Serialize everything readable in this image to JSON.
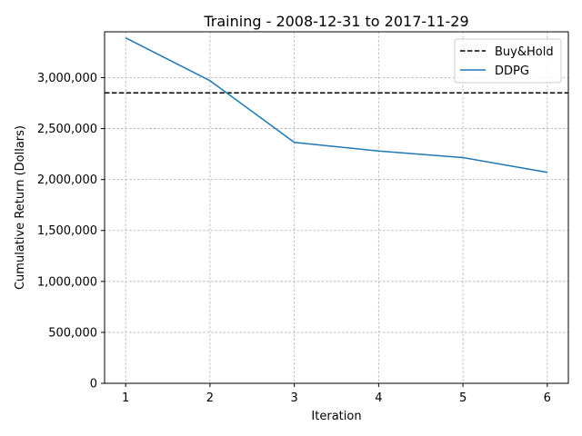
{
  "chart_data": {
    "type": "line",
    "title": "Training - 2008-12-31 to 2017-11-29",
    "xlabel": "Iteration",
    "ylabel": "Cumulative Return (Dollars)",
    "x": [
      1,
      2,
      3,
      4,
      5,
      6
    ],
    "xlim": [
      0.75,
      6.25
    ],
    "ylim": [
      0,
      3450000
    ],
    "x_ticks": [
      1,
      2,
      3,
      4,
      5,
      6
    ],
    "x_tick_labels": [
      "1",
      "2",
      "3",
      "4",
      "5",
      "6"
    ],
    "y_ticks": [
      0,
      500000,
      1000000,
      1500000,
      2000000,
      2500000,
      3000000
    ],
    "y_tick_labels": [
      "0",
      "500,000",
      "1,000,000",
      "1,500,000",
      "2,000,000",
      "2,500,000",
      "3,000,000"
    ],
    "grid": true,
    "legend_position": "top-right",
    "series": [
      {
        "name": "Buy&Hold",
        "kind": "hline",
        "value": 2850000,
        "color": "#000000",
        "style": "dashed"
      },
      {
        "name": "DDPG",
        "kind": "line",
        "values": [
          3390000,
          2970000,
          2365000,
          2280000,
          2215000,
          2070000
        ],
        "color": "#1f77b4",
        "style": "solid"
      }
    ]
  }
}
